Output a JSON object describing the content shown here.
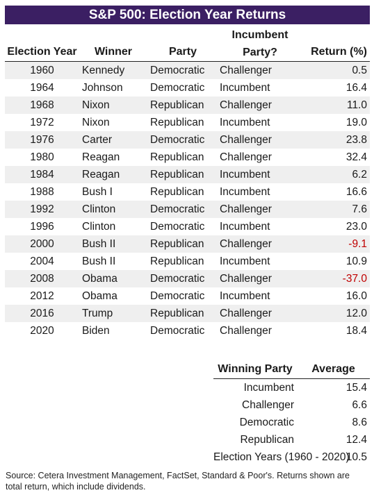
{
  "title": "S&P 500: Election Year Returns",
  "main_table": {
    "headers": {
      "year": "Election Year",
      "winner": "Winner",
      "party": "Party",
      "incumbent_line1": "Incumbent",
      "incumbent_line2": "Party?",
      "return": "Return (%)"
    },
    "rows": [
      {
        "year": "1960",
        "winner": "Kennedy",
        "party": "Democratic",
        "incumbent": "Challenger",
        "return": "0.5"
      },
      {
        "year": "1964",
        "winner": "Johnson",
        "party": "Democratic",
        "incumbent": "Incumbent",
        "return": "16.4"
      },
      {
        "year": "1968",
        "winner": "Nixon",
        "party": "Republican",
        "incumbent": "Challenger",
        "return": "11.0"
      },
      {
        "year": "1972",
        "winner": "Nixon",
        "party": "Republican",
        "incumbent": "Incumbent",
        "return": "19.0"
      },
      {
        "year": "1976",
        "winner": "Carter",
        "party": "Democratic",
        "incumbent": "Challenger",
        "return": "23.8"
      },
      {
        "year": "1980",
        "winner": "Reagan",
        "party": "Republican",
        "incumbent": "Challenger",
        "return": "32.4"
      },
      {
        "year": "1984",
        "winner": "Reagan",
        "party": "Republican",
        "incumbent": "Incumbent",
        "return": "6.2"
      },
      {
        "year": "1988",
        "winner": "Bush I",
        "party": "Republican",
        "incumbent": "Incumbent",
        "return": "16.6"
      },
      {
        "year": "1992",
        "winner": "Clinton",
        "party": "Democratic",
        "incumbent": "Challenger",
        "return": "7.6"
      },
      {
        "year": "1996",
        "winner": "Clinton",
        "party": "Democratic",
        "incumbent": "Incumbent",
        "return": "23.0"
      },
      {
        "year": "2000",
        "winner": "Bush II",
        "party": "Republican",
        "incumbent": "Challenger",
        "return": "-9.1"
      },
      {
        "year": "2004",
        "winner": "Bush II",
        "party": "Republican",
        "incumbent": "Incumbent",
        "return": "10.9"
      },
      {
        "year": "2008",
        "winner": "Obama",
        "party": "Democratic",
        "incumbent": "Challenger",
        "return": "-37.0"
      },
      {
        "year": "2012",
        "winner": "Obama",
        "party": "Democratic",
        "incumbent": "Incumbent",
        "return": "16.0"
      },
      {
        "year": "2016",
        "winner": "Trump",
        "party": "Republican",
        "incumbent": "Challenger",
        "return": "12.0"
      },
      {
        "year": "2020",
        "winner": "Biden",
        "party": "Democratic",
        "incumbent": "Challenger",
        "return": "18.4"
      }
    ]
  },
  "average_table": {
    "headers": {
      "label": "Winning Party",
      "value": "Average"
    },
    "rows": [
      {
        "label": "Incumbent",
        "value": "15.4"
      },
      {
        "label": "Challenger",
        "value": "6.6"
      },
      {
        "label": "Democratic",
        "value": "8.6"
      },
      {
        "label": "Republican",
        "value": "12.4"
      },
      {
        "label": "Election Years (1960 - 2020)",
        "value": "10.5"
      }
    ]
  },
  "footnote": "Source: Cetera Investment Management, FactSet, Standard & Poor's. Returns shown are total return, which include dividends.",
  "colors": {
    "title_bg": "#3b1f63",
    "negative": "#c00000",
    "stripe": "#efefef"
  }
}
